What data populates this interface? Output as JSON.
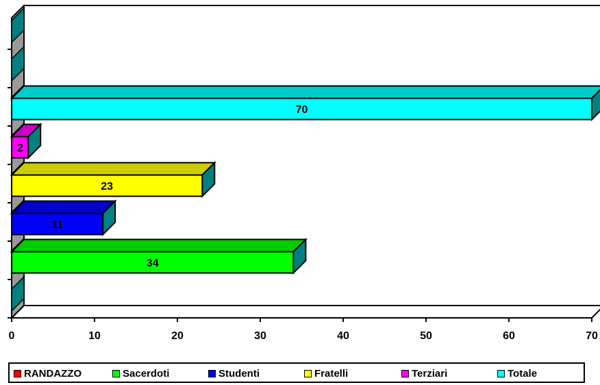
{
  "chart_data": {
    "type": "bar",
    "orientation": "horizontal",
    "style": "3d",
    "title": "",
    "xlabel": "",
    "ylabel": "",
    "xlim": [
      0,
      70
    ],
    "x_ticks": [
      "0",
      "10",
      "20",
      "30",
      "40",
      "50",
      "60",
      "70"
    ],
    "grid": false,
    "legend_position": "bottom",
    "series": [
      {
        "name": "RANDAZZO",
        "values": [
          0
        ],
        "color": "#ff0000"
      },
      {
        "name": "Sacerdoti",
        "values": [
          34
        ],
        "color": "#00ff00"
      },
      {
        "name": "Studenti",
        "values": [
          11
        ],
        "color": "#0000ff"
      },
      {
        "name": "Fratelli",
        "values": [
          23
        ],
        "color": "#ffff00"
      },
      {
        "name": "Terziari",
        "values": [
          2
        ],
        "color": "#ff00ff"
      },
      {
        "name": "Totale",
        "values": [
          70
        ],
        "color": "#00ffff"
      }
    ],
    "data_labels": [
      "",
      "34",
      "11",
      "23",
      "2",
      "70"
    ]
  }
}
